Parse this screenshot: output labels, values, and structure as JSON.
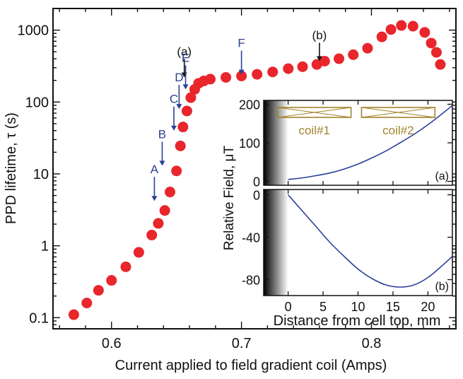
{
  "chart_data": [
    {
      "type": "scatter",
      "xlabel": "Current applied to field gradient coil (Amps)",
      "ylabel": "PPD lifetime, τ  (s)",
      "yscale": "log",
      "xlim": [
        0.555,
        0.865
      ],
      "ylim": [
        0.07,
        2000
      ],
      "xticks": [
        0.6,
        0.7,
        0.8
      ],
      "xtick_labels": [
        "0.6",
        "0.7",
        "0.8"
      ],
      "yticks": [
        0.1,
        1,
        10,
        100,
        1000
      ],
      "ytick_labels": [
        "0.1",
        "1",
        "10",
        "100",
        "1000"
      ],
      "marker_color": "#e8262b",
      "points": [
        [
          0.571,
          0.11
        ],
        [
          0.581,
          0.16
        ],
        [
          0.59,
          0.24
        ],
        [
          0.6,
          0.33
        ],
        [
          0.611,
          0.51
        ],
        [
          0.621,
          0.81
        ],
        [
          0.631,
          1.41
        ],
        [
          0.636,
          2.05
        ],
        [
          0.641,
          3.1
        ],
        [
          0.645,
          5.6
        ],
        [
          0.65,
          11.0
        ],
        [
          0.653,
          24.5
        ],
        [
          0.655,
          45.0
        ],
        [
          0.658,
          75.0
        ],
        [
          0.661,
          115.0
        ],
        [
          0.664,
          150.0
        ],
        [
          0.667,
          182.0
        ],
        [
          0.671,
          196.0
        ],
        [
          0.676,
          208.0
        ],
        [
          0.688,
          220.0
        ],
        [
          0.7,
          230.0
        ],
        [
          0.712,
          243.0
        ],
        [
          0.724,
          262.0
        ],
        [
          0.736,
          291.0
        ],
        [
          0.747,
          310.0
        ],
        [
          0.758,
          333.0
        ],
        [
          0.764,
          370.0
        ],
        [
          0.775,
          400.0
        ],
        [
          0.786,
          455.0
        ],
        [
          0.797,
          560.0
        ],
        [
          0.808,
          805.0
        ],
        [
          0.815,
          1020.0
        ],
        [
          0.823,
          1160.0
        ],
        [
          0.832,
          1135.0
        ],
        [
          0.841,
          930.0
        ],
        [
          0.846,
          660.0
        ],
        [
          0.85,
          490.0
        ],
        [
          0.853,
          333.0
        ]
      ],
      "annotations": [
        {
          "text": "(a)",
          "x": 0.656,
          "y": 220,
          "style": "black"
        },
        {
          "text": "(b)",
          "x": 0.76,
          "y": 370,
          "style": "black"
        },
        {
          "text": "A",
          "x": 0.633,
          "y": 4.2,
          "style": "blue"
        },
        {
          "text": "B",
          "x": 0.639,
          "y": 13.0,
          "style": "blue"
        },
        {
          "text": "C",
          "x": 0.648,
          "y": 40.0,
          "style": "blue"
        },
        {
          "text": "D",
          "x": 0.652,
          "y": 80.0,
          "style": "blue"
        },
        {
          "text": "E",
          "x": 0.657,
          "y": 150.0,
          "style": "blue"
        },
        {
          "text": "F",
          "x": 0.7,
          "y": 240.0,
          "style": "blue"
        }
      ]
    },
    {
      "type": "line",
      "panel": "(a)",
      "ylabel": "Relative Field, μT",
      "xlim": [
        -3.5,
        23.5
      ],
      "ylim": [
        -10,
        210
      ],
      "yticks": [
        0,
        100,
        200
      ],
      "ytick_labels": [
        "0",
        "100",
        "200"
      ],
      "coils": [
        {
          "label": "coil#1",
          "x0": -1.5,
          "x1": 9.0
        },
        {
          "label": "coil#2",
          "x0": 10.5,
          "x1": 21.0
        }
      ],
      "x": [
        0,
        2,
        4,
        6,
        8,
        10,
        12,
        14,
        16,
        18,
        20,
        22,
        23.5
      ],
      "y": [
        5,
        9,
        15,
        22,
        32,
        45,
        61,
        79,
        100,
        122,
        147,
        175,
        197
      ],
      "color": "#2b3f9a"
    },
    {
      "type": "line",
      "panel": "(b)",
      "xlabel": "Distance from cell top, mm",
      "xlim": [
        -3.5,
        23.5
      ],
      "ylim": [
        -95,
        5
      ],
      "xticks": [
        0,
        5,
        10,
        15,
        20
      ],
      "xtick_labels": [
        "0",
        "5",
        "10",
        "15",
        "20"
      ],
      "yticks": [
        0,
        -40,
        -80
      ],
      "ytick_labels": [
        "0",
        "-40",
        "-80"
      ],
      "x": [
        0,
        2,
        4,
        6,
        8,
        10,
        12,
        14,
        16,
        18,
        20,
        22,
        23.5
      ],
      "y": [
        0,
        -15,
        -30,
        -45,
        -58,
        -70,
        -79,
        -85,
        -87,
        -85,
        -78,
        -67,
        -58
      ],
      "color": "#2b3f9a"
    }
  ]
}
